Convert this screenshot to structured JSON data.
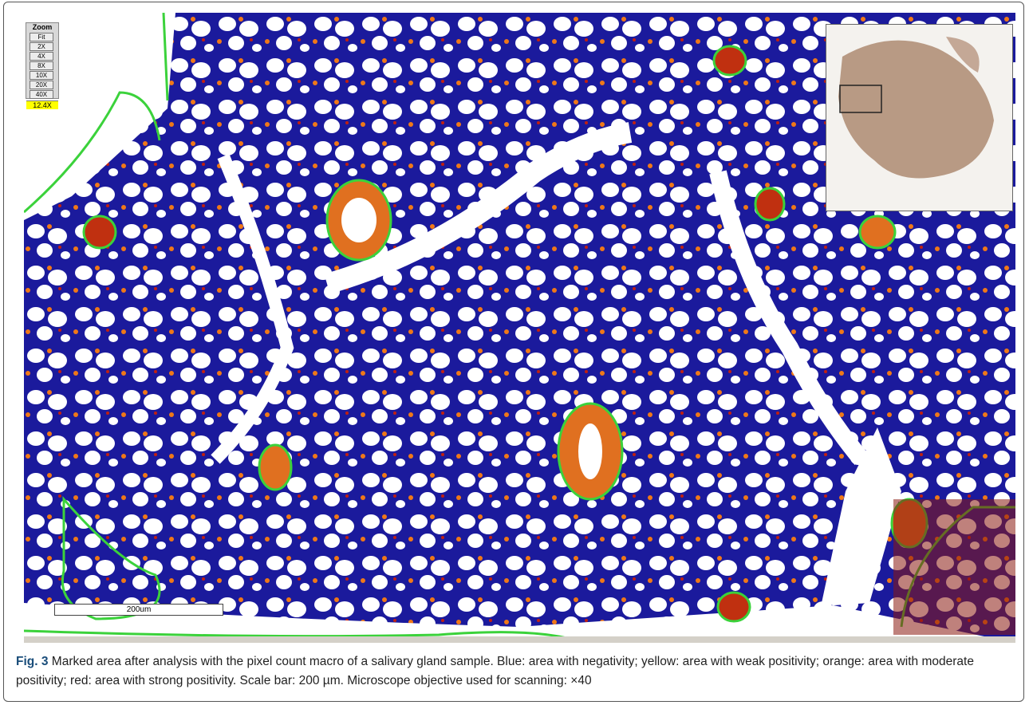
{
  "zoom_panel": {
    "title": "Zoom",
    "buttons": [
      "Fit",
      "2X",
      "4X",
      "8X",
      "10X",
      "20X",
      "40X"
    ],
    "current": "12.4X"
  },
  "scale_bar": "200um",
  "caption": {
    "label": "Fig. 3",
    "text": "Marked area after analysis with the pixel count macro of a salivary gland sample. Blue: area with negativity; yellow: area with weak positivity; orange: area with moderate positivity; red: area with strong positivity. Scale bar: 200 µm. Microscope objective used for scanning: ×40"
  }
}
